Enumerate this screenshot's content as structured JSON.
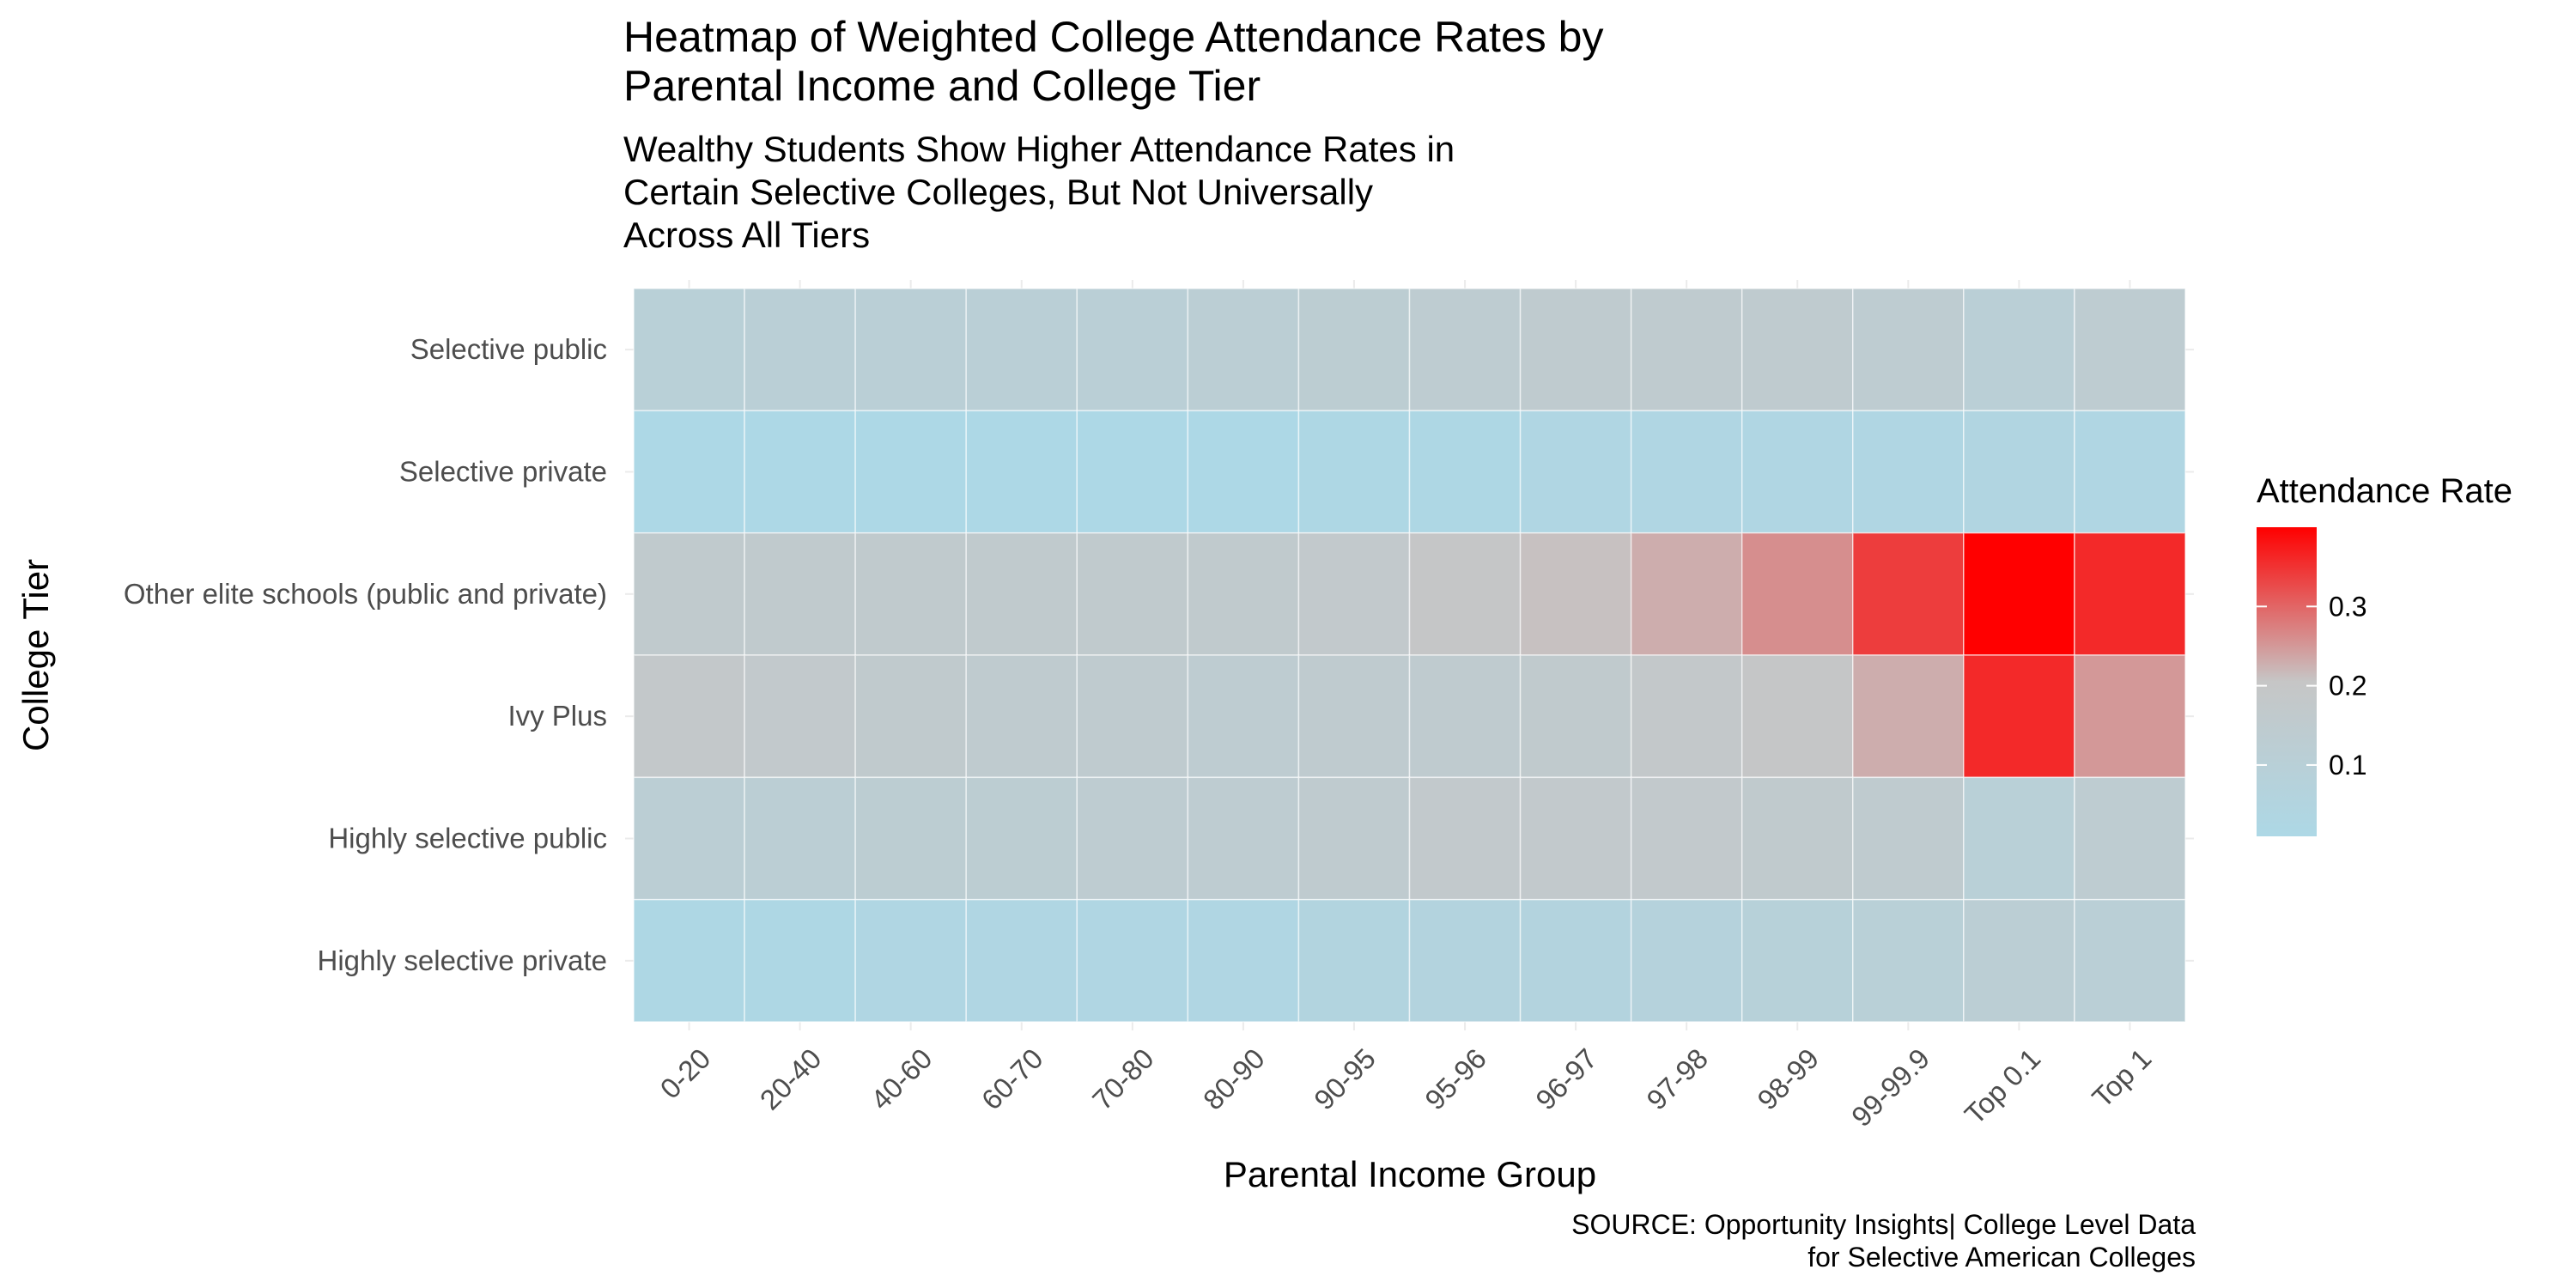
{
  "chart_data": {
    "type": "heatmap",
    "title": [
      "Heatmap of Weighted College Attendance Rates by",
      "Parental Income and College Tier"
    ],
    "subtitle": [
      "Wealthy Students Show Higher Attendance Rates in",
      "Certain Selective Colleges, But Not Universally",
      "Across All Tiers"
    ],
    "xlabel": "Parental Income Group",
    "ylabel": "College Tier",
    "x_categories": [
      "0-20",
      "20-40",
      "40-60",
      "60-70",
      "70-80",
      "80-90",
      "90-95",
      "95-96",
      "96-97",
      "97-98",
      "98-99",
      "99-99.9",
      "Top 0.1",
      "Top 1"
    ],
    "y_categories": [
      "Selective public",
      "Selective private",
      "Other elite schools (public and private)",
      "Ivy Plus",
      "Highly selective public",
      "Highly selective private"
    ],
    "values": [
      [
        0.1,
        0.11,
        0.11,
        0.11,
        0.11,
        0.12,
        0.13,
        0.14,
        0.15,
        0.15,
        0.15,
        0.14,
        0.11,
        0.14
      ],
      [
        0.01,
        0.01,
        0.01,
        0.01,
        0.01,
        0.01,
        0.02,
        0.02,
        0.03,
        0.03,
        0.03,
        0.03,
        0.04,
        0.03
      ],
      [
        0.16,
        0.16,
        0.16,
        0.16,
        0.16,
        0.16,
        0.17,
        0.2,
        0.21,
        0.23,
        0.26,
        0.34,
        0.4,
        0.36
      ],
      [
        0.18,
        0.17,
        0.16,
        0.15,
        0.15,
        0.14,
        0.15,
        0.15,
        0.16,
        0.18,
        0.2,
        0.23,
        0.36,
        0.25
      ],
      [
        0.12,
        0.12,
        0.13,
        0.13,
        0.14,
        0.14,
        0.15,
        0.17,
        0.17,
        0.17,
        0.16,
        0.15,
        0.1,
        0.14
      ],
      [
        0.02,
        0.02,
        0.03,
        0.03,
        0.03,
        0.03,
        0.05,
        0.06,
        0.06,
        0.07,
        0.09,
        0.1,
        0.12,
        0.11
      ]
    ],
    "color_scale": {
      "low": "#add8e6",
      "mid": "#c6c6c6",
      "high": "#ff0000",
      "min": 0.01,
      "max": 0.4
    },
    "legend": {
      "title": "Attendance Rate",
      "ticks": [
        0.1,
        0.2,
        0.3
      ],
      "tick_labels": [
        "0.1",
        "0.2",
        "0.3"
      ],
      "position": "right"
    },
    "caption": [
      "SOURCE: Opportunity Insights| College Level Data",
      "for Selective American Colleges"
    ],
    "grid": true
  }
}
